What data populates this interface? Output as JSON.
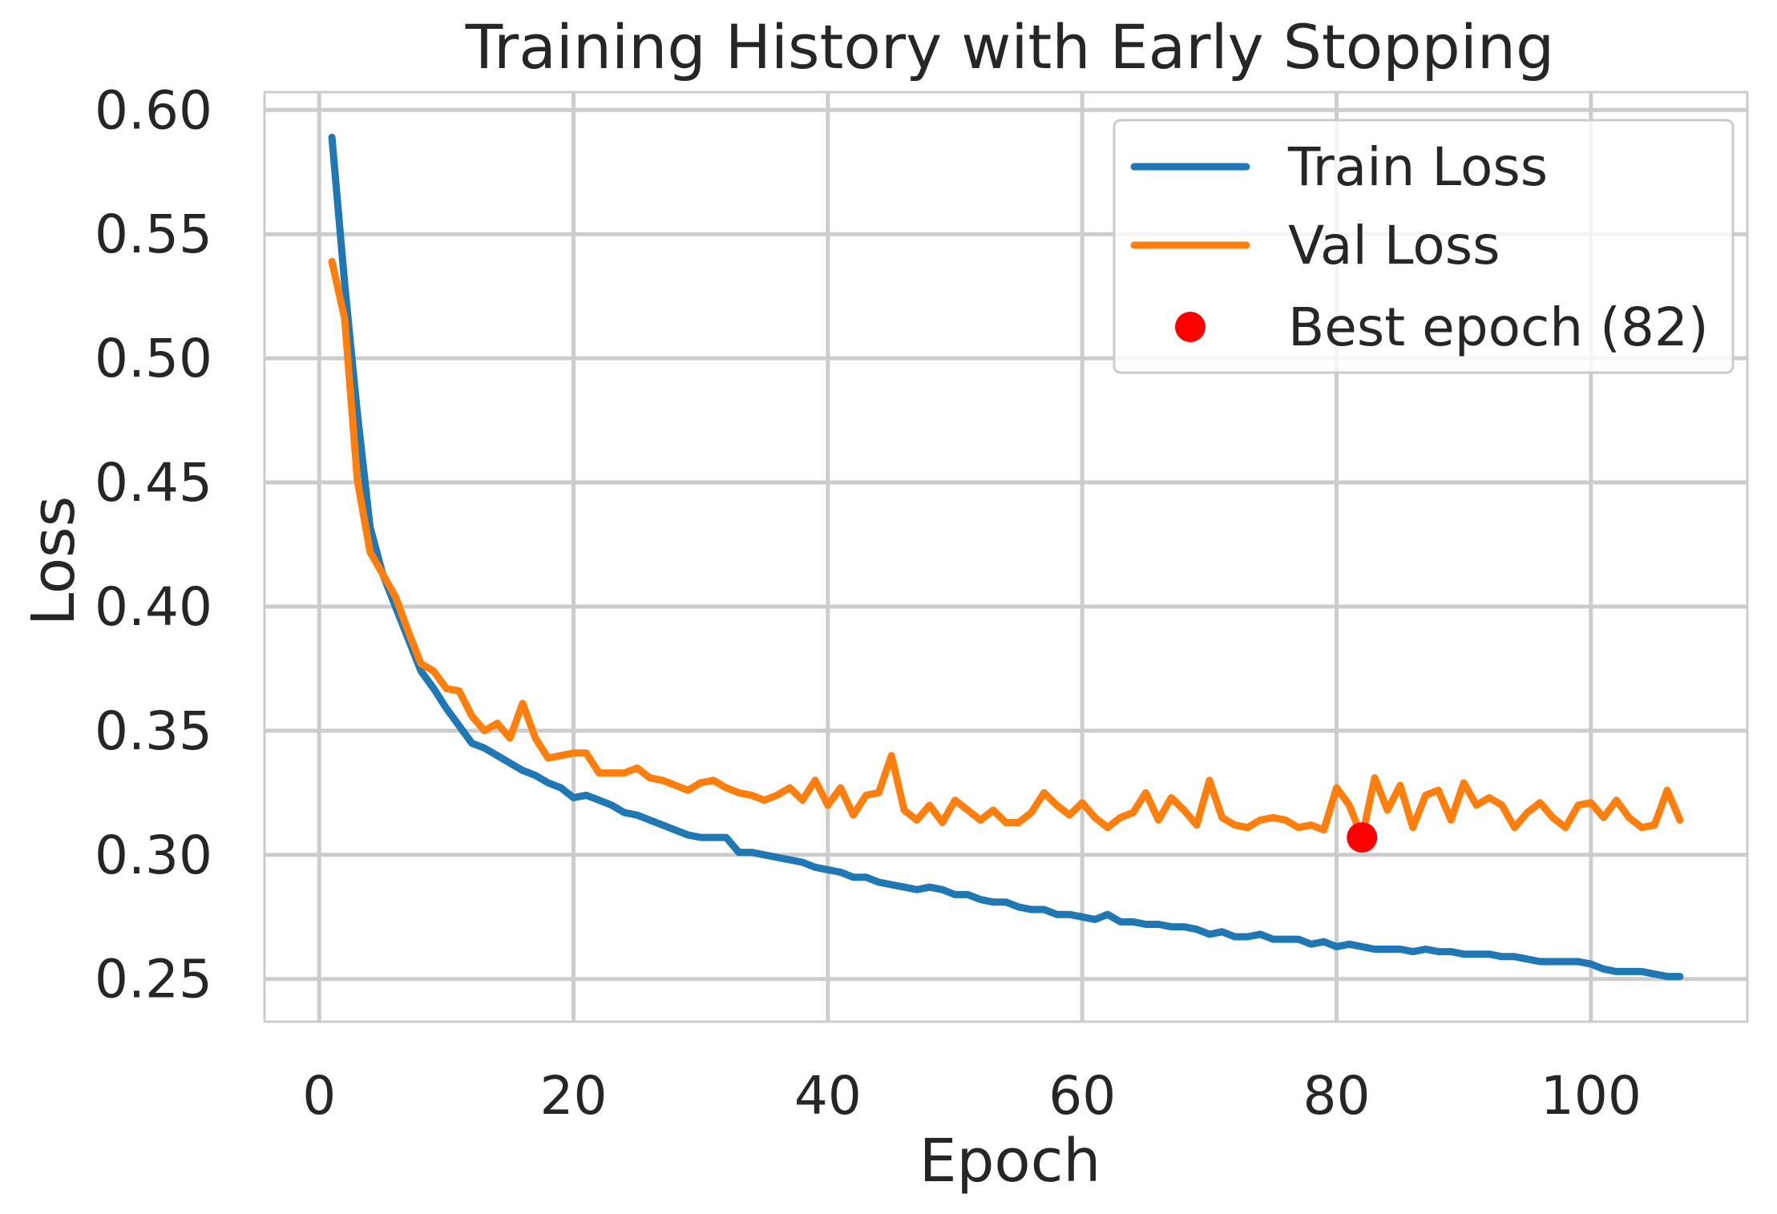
{
  "chart_data": {
    "type": "line",
    "title": "Training History with Early Stopping",
    "xlabel": "Epoch",
    "ylabel": "Loss",
    "xlim": [
      -4.3,
      112.3
    ],
    "ylim": [
      0.2328,
      0.6072
    ],
    "xticks": [
      0,
      20,
      40,
      60,
      80,
      100
    ],
    "xtick_labels": [
      "0",
      "20",
      "40",
      "60",
      "80",
      "100"
    ],
    "yticks": [
      0.25,
      0.3,
      0.35,
      0.4,
      0.45,
      0.5,
      0.55,
      0.6
    ],
    "ytick_labels": [
      "0.25",
      "0.30",
      "0.35",
      "0.40",
      "0.45",
      "0.50",
      "0.55",
      "0.60"
    ],
    "grid": true,
    "legend_position": "top-right",
    "series": [
      {
        "name": "Train Loss",
        "color": "#1f77b4",
        "x_start": 1,
        "values": [
          0.589,
          0.53,
          0.478,
          0.432,
          0.413,
          0.4,
          0.387,
          0.374,
          0.367,
          0.359,
          0.352,
          0.345,
          0.343,
          0.34,
          0.337,
          0.334,
          0.332,
          0.329,
          0.327,
          0.323,
          0.324,
          0.322,
          0.32,
          0.317,
          0.316,
          0.314,
          0.312,
          0.31,
          0.308,
          0.307,
          0.307,
          0.307,
          0.301,
          0.301,
          0.3,
          0.299,
          0.298,
          0.297,
          0.295,
          0.294,
          0.293,
          0.291,
          0.291,
          0.289,
          0.288,
          0.287,
          0.286,
          0.287,
          0.286,
          0.284,
          0.284,
          0.282,
          0.281,
          0.281,
          0.279,
          0.278,
          0.278,
          0.276,
          0.276,
          0.275,
          0.274,
          0.276,
          0.273,
          0.273,
          0.272,
          0.272,
          0.271,
          0.271,
          0.27,
          0.268,
          0.269,
          0.267,
          0.267,
          0.268,
          0.266,
          0.266,
          0.266,
          0.264,
          0.265,
          0.263,
          0.264,
          0.263,
          0.262,
          0.262,
          0.262,
          0.261,
          0.262,
          0.261,
          0.261,
          0.26,
          0.26,
          0.26,
          0.259,
          0.259,
          0.258,
          0.257,
          0.257,
          0.257,
          0.257,
          0.256,
          0.254,
          0.253,
          0.253,
          0.253,
          0.252,
          0.251,
          0.251
        ]
      },
      {
        "name": "Val Loss",
        "color": "#ff7f0e",
        "x_start": 1,
        "values": [
          0.539,
          0.516,
          0.451,
          0.422,
          0.413,
          0.404,
          0.39,
          0.377,
          0.374,
          0.367,
          0.366,
          0.356,
          0.35,
          0.353,
          0.347,
          0.361,
          0.347,
          0.339,
          0.34,
          0.341,
          0.341,
          0.333,
          0.333,
          0.333,
          0.335,
          0.331,
          0.33,
          0.328,
          0.326,
          0.329,
          0.33,
          0.327,
          0.325,
          0.324,
          0.322,
          0.324,
          0.327,
          0.322,
          0.33,
          0.32,
          0.327,
          0.316,
          0.324,
          0.325,
          0.34,
          0.318,
          0.314,
          0.32,
          0.313,
          0.322,
          0.318,
          0.314,
          0.318,
          0.313,
          0.313,
          0.317,
          0.325,
          0.32,
          0.316,
          0.321,
          0.315,
          0.311,
          0.315,
          0.317,
          0.325,
          0.314,
          0.323,
          0.318,
          0.312,
          0.33,
          0.315,
          0.312,
          0.311,
          0.314,
          0.315,
          0.314,
          0.311,
          0.312,
          0.31,
          0.327,
          0.32,
          0.307,
          0.331,
          0.318,
          0.328,
          0.311,
          0.324,
          0.326,
          0.314,
          0.329,
          0.32,
          0.323,
          0.32,
          0.311,
          0.317,
          0.321,
          0.315,
          0.311,
          0.32,
          0.321,
          0.315,
          0.322,
          0.315,
          0.311,
          0.312,
          0.326,
          0.314
        ]
      }
    ],
    "marker": {
      "name": "Best epoch (82)",
      "x": 82,
      "y": 0.307,
      "color": "#ff0000"
    }
  }
}
